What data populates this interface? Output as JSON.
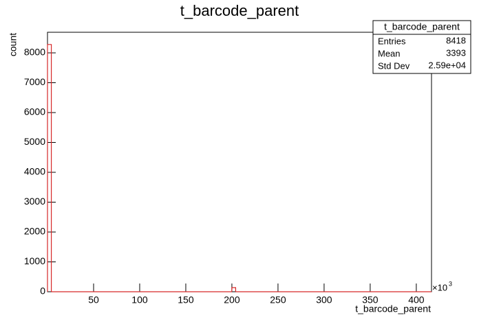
{
  "chart_data": {
    "type": "histogram",
    "title": "t_barcode_parent",
    "x_label": "t_barcode_parent",
    "y_label": "count",
    "x_multiplier": "×10",
    "x_multiplier_exp": "3",
    "bins": [
      0,
      4.165,
      199.92,
      204.085,
      416.5
    ],
    "counts": [
      8280,
      0,
      138,
      0
    ],
    "color": "#d62728",
    "xlim": [
      0,
      416.5
    ],
    "xticks": [
      50,
      100,
      150,
      200,
      250,
      300,
      350,
      400
    ],
    "ylim": [
      0,
      8690
    ],
    "yticks": [
      0,
      1000,
      2000,
      3000,
      4000,
      5000,
      6000,
      7000,
      8000
    ],
    "stats": {
      "title": "t_barcode_parent",
      "rows": [
        {
          "label": "Entries",
          "value": "8418"
        },
        {
          "label": "Mean",
          "value": "3393"
        },
        {
          "label": "Std Dev",
          "value": "2.59e+04"
        }
      ]
    }
  }
}
